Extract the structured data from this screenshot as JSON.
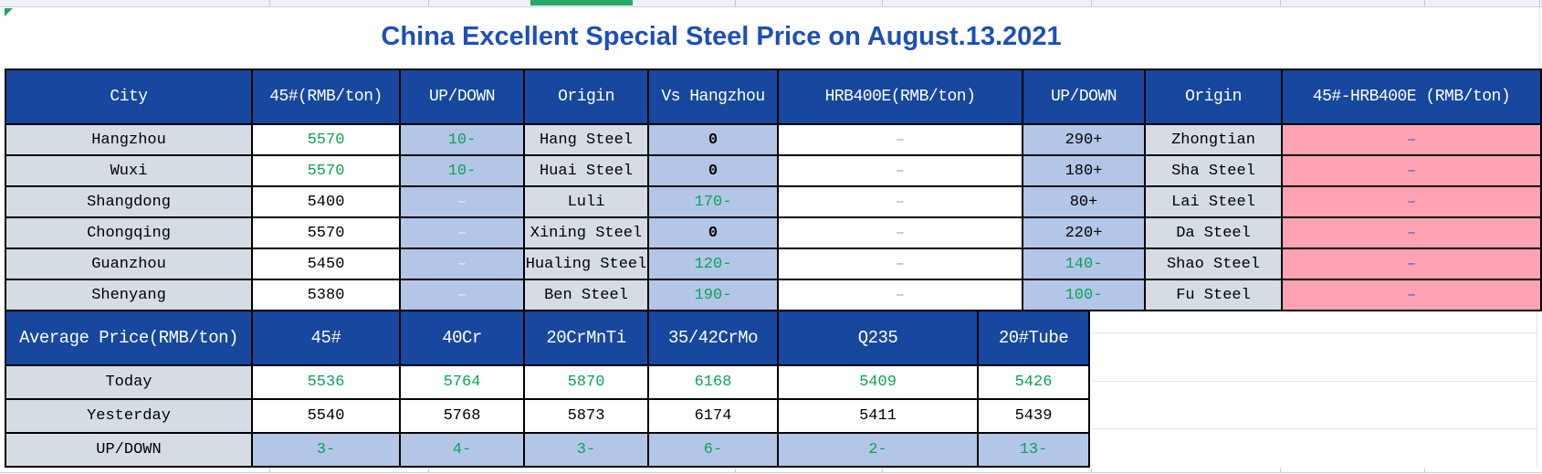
{
  "sheet": {
    "title": "China Excellent Special Steel Price on August.13.2021"
  },
  "steel_table": {
    "headers": [
      "City",
      "45#(RMB/ton)",
      "UP/DOWN",
      "Origin",
      "Vs Hangzhou",
      "HRB400E(RMB/ton)",
      "UP/DOWN",
      "Origin",
      "45#-HRB400E (RMB/ton)"
    ],
    "rows": [
      {
        "cells": [
          {
            "v": "Hangzhou",
            "c": "label"
          },
          {
            "v": "5570",
            "c": "green"
          },
          {
            "v": "10-",
            "c": "green"
          },
          {
            "v": "Hang Steel",
            "c": "label"
          },
          {
            "v": "0",
            "c": "zero"
          },
          {
            "v": "–",
            "c": "dash-mid"
          },
          {
            "v": "290+",
            "c": "black"
          },
          {
            "v": "Zhongtian",
            "c": "label"
          },
          {
            "v": "–",
            "c": "dash-dark"
          }
        ]
      },
      {
        "cells": [
          {
            "v": "Wuxi",
            "c": "label"
          },
          {
            "v": "5570",
            "c": "green"
          },
          {
            "v": "10-",
            "c": "green"
          },
          {
            "v": "Huai Steel",
            "c": "label"
          },
          {
            "v": "0",
            "c": "zero"
          },
          {
            "v": "–",
            "c": "dash-mid"
          },
          {
            "v": "180+",
            "c": "black"
          },
          {
            "v": "Sha Steel",
            "c": "label"
          },
          {
            "v": "–",
            "c": "dash-dark"
          }
        ]
      },
      {
        "cells": [
          {
            "v": "Shangdong",
            "c": "label"
          },
          {
            "v": "5400",
            "c": "black"
          },
          {
            "v": "–",
            "c": "dash-light"
          },
          {
            "v": "Luli",
            "c": "label"
          },
          {
            "v": "170-",
            "c": "green"
          },
          {
            "v": "–",
            "c": "dash-mid"
          },
          {
            "v": "80+",
            "c": "black"
          },
          {
            "v": "Lai Steel",
            "c": "label"
          },
          {
            "v": "–",
            "c": "dash-dark"
          }
        ]
      },
      {
        "cells": [
          {
            "v": "Chongqing",
            "c": "label"
          },
          {
            "v": "5570",
            "c": "black"
          },
          {
            "v": "–",
            "c": "dash-light"
          },
          {
            "v": "Xining Steel",
            "c": "label"
          },
          {
            "v": "0",
            "c": "zero"
          },
          {
            "v": "–",
            "c": "dash-mid"
          },
          {
            "v": "220+",
            "c": "black"
          },
          {
            "v": "Da Steel",
            "c": "label"
          },
          {
            "v": "–",
            "c": "dash-dark"
          }
        ]
      },
      {
        "cells": [
          {
            "v": "Guanzhou",
            "c": "label"
          },
          {
            "v": "5450",
            "c": "black"
          },
          {
            "v": "–",
            "c": "dash-light"
          },
          {
            "v": "Hualing Steel",
            "c": "label"
          },
          {
            "v": "120-",
            "c": "green"
          },
          {
            "v": "–",
            "c": "dash-mid"
          },
          {
            "v": "140-",
            "c": "green"
          },
          {
            "v": "Shao Steel",
            "c": "label"
          },
          {
            "v": "–",
            "c": "dash-dark"
          }
        ]
      },
      {
        "cells": [
          {
            "v": "Shenyang",
            "c": "label"
          },
          {
            "v": "5380",
            "c": "black"
          },
          {
            "v": "–",
            "c": "dash-light"
          },
          {
            "v": "Ben Steel",
            "c": "label"
          },
          {
            "v": "190-",
            "c": "green"
          },
          {
            "v": "–",
            "c": "dash-mid"
          },
          {
            "v": "100-",
            "c": "green"
          },
          {
            "v": "Fu Steel",
            "c": "label"
          },
          {
            "v": "–",
            "c": "dash-dark"
          }
        ]
      }
    ]
  },
  "average_table": {
    "headers": [
      "Average Price(RMB/ton)",
      "45#",
      "40Cr",
      "20CrMnTi",
      "35/42CrMo",
      "Q235",
      "20#Tube"
    ],
    "rows": [
      {
        "label": "Today",
        "value_style": "green",
        "row_bg": "white",
        "values": [
          "5536",
          "5764",
          "5870",
          "6168",
          "5409",
          "5426"
        ]
      },
      {
        "label": "Yesterday",
        "value_style": "black",
        "row_bg": "white",
        "values": [
          "5540",
          "5768",
          "5873",
          "6174",
          "5411",
          "5439"
        ]
      },
      {
        "label": "UP/DOWN",
        "value_style": "green",
        "row_bg": "lblue",
        "values": [
          "3-",
          "4-",
          "3-",
          "6-",
          "2-",
          "13-"
        ]
      }
    ]
  },
  "colors": {
    "header_bg": "#17479e",
    "cell_blue": "#b4c6e7",
    "cell_gray": "#d6dce4",
    "cell_pink": "#ffa2b4",
    "value_green": "#0ca257",
    "title_blue": "#1d4ebc",
    "dash_light": "#eaeef6",
    "dash_mid": "#93a7d3",
    "dash_dark": "#4e5fae",
    "tab_green": "#27a768"
  }
}
